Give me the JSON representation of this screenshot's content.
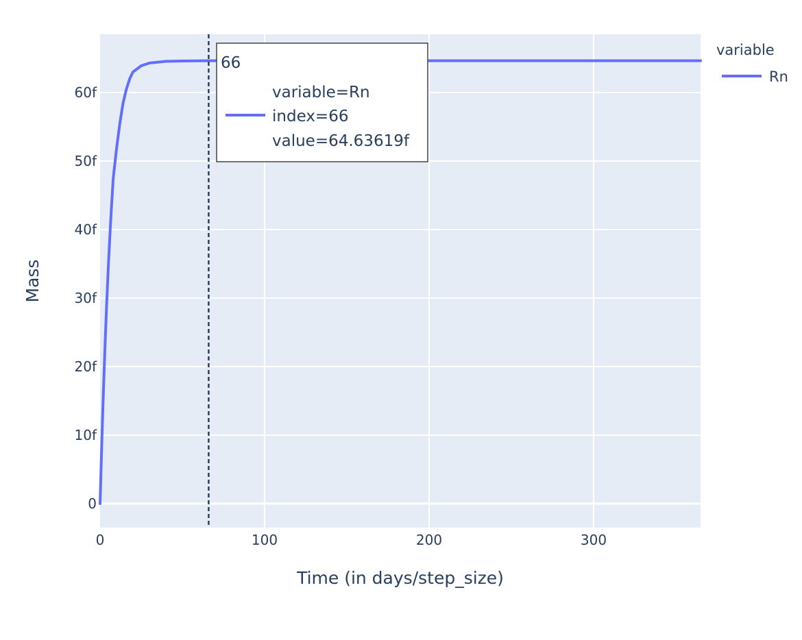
{
  "chart_data": {
    "type": "line",
    "x_label": "Time (in days/step_size)",
    "y_label": "Mass",
    "x_range": [
      0,
      365
    ],
    "y_range": [
      -3.5,
      68.5
    ],
    "x_ticks": [
      {
        "value": 0,
        "label": "0"
      },
      {
        "value": 100,
        "label": "100"
      },
      {
        "value": 200,
        "label": "200"
      },
      {
        "value": 300,
        "label": "300"
      }
    ],
    "y_ticks": [
      {
        "value": 0,
        "label": "0"
      },
      {
        "value": 10,
        "label": "10f"
      },
      {
        "value": 20,
        "label": "20f"
      },
      {
        "value": 30,
        "label": "30f"
      },
      {
        "value": 40,
        "label": "40f"
      },
      {
        "value": 50,
        "label": "50f"
      },
      {
        "value": 60,
        "label": "60f"
      }
    ],
    "grid": true,
    "legend": {
      "title": "variable",
      "position": "top-right"
    },
    "series": [
      {
        "name": "Rn",
        "color": "#636efa",
        "points": [
          [
            0,
            0
          ],
          [
            1,
            8.5
          ],
          [
            2,
            16.2
          ],
          [
            3,
            23.0
          ],
          [
            4,
            29.1
          ],
          [
            5,
            34.5
          ],
          [
            6,
            39.3
          ],
          [
            7,
            43.6
          ],
          [
            8,
            47.5
          ],
          [
            10,
            51.8
          ],
          [
            12,
            55.5
          ],
          [
            14,
            58.5
          ],
          [
            16,
            60.5
          ],
          [
            18,
            62.0
          ],
          [
            20,
            63.0
          ],
          [
            25,
            63.9
          ],
          [
            30,
            64.3
          ],
          [
            40,
            64.55
          ],
          [
            50,
            64.6
          ],
          [
            66,
            64.63619
          ],
          [
            100,
            64.64
          ],
          [
            200,
            64.64
          ],
          [
            300,
            64.64
          ],
          [
            365,
            64.64
          ]
        ]
      }
    ],
    "hover": {
      "x": 66,
      "header": "66",
      "lines": [
        "variable=Rn",
        "index=66",
        "value=64.63619f"
      ]
    }
  }
}
